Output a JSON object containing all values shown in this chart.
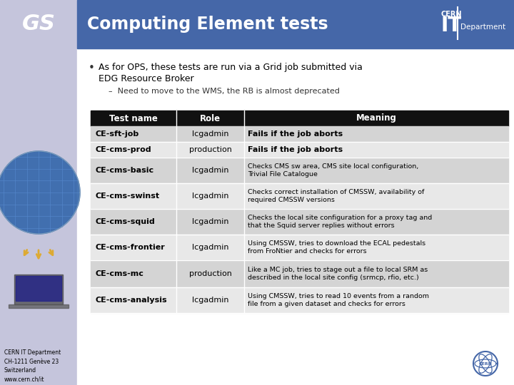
{
  "title": "Computing Element tests",
  "slide_bg": "#ffffff",
  "left_panel_color": "#c5c5dc",
  "header_bg": "#4567a8",
  "header_text_color": "#ffffff",
  "gs_text": "GS",
  "bullet_main1": "As for OPS, these tests are run via a Grid job submitted via",
  "bullet_main2": "EDG Resource Broker",
  "bullet_sub": "Need to move to the WMS, the RB is almost deprecated",
  "table_header_bg": "#111111",
  "table_header_text": "#ffffff",
  "table_col1_header": "Test name",
  "table_col2_header": "Role",
  "table_col3_header": "Meaning",
  "row_odd_bg": "#d4d4d4",
  "row_even_bg": "#e8e8e8",
  "table_rows": [
    [
      "CE-sft-job",
      "lcgadmin",
      "Fails if the job aborts",
      "bold"
    ],
    [
      "CE-cms-prod",
      "production",
      "Fails if the job aborts",
      "bold"
    ],
    [
      "CE-cms-basic",
      "lcgadmin",
      "Checks CMS sw area, CMS site local configuration,\nTrivial File Catalogue",
      "normal"
    ],
    [
      "CE-cms-swinst",
      "lcgadmin",
      "Checks correct installation of CMSSW, availability of\nrequired CMSSW versions",
      "normal"
    ],
    [
      "CE-cms-squid",
      "lcgadmin",
      "Checks the local site configuration for a proxy tag and\nthat the Squid server replies without errors",
      "normal"
    ],
    [
      "CE-cms-frontier",
      "lcgadmin",
      "Using CMSSW, tries to download the ECAL pedestals\nfrom FroNtier and checks for errors",
      "normal"
    ],
    [
      "CE-cms-mc",
      "production",
      "Like a MC job, tries to stage out a file to local SRM as\ndescribed in the local site config (srmcp, rfio, etc.)",
      "normal"
    ],
    [
      "CE-cms-analysis",
      "lcgadmin",
      "Using CMSSW, tries to read 10 events from a random\nfile from a given dataset and checks for errors",
      "normal"
    ]
  ],
  "footer_text": "CERN IT Department\nCH-1211 Genève 23\nSwitzerland\nwww.cern.ch/it",
  "cern_logo_color": "#4567a8"
}
